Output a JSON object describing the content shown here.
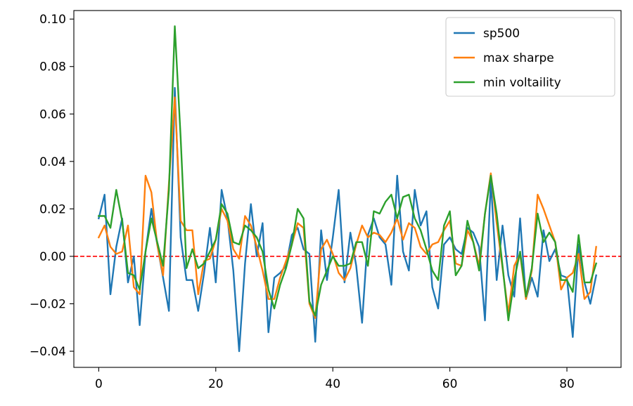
{
  "chart_data": {
    "type": "line",
    "title": "",
    "xlabel": "",
    "ylabel": "",
    "xlim": [
      -4.25,
      89.25
    ],
    "ylim": [
      -0.0468,
      0.1036
    ],
    "xticks": [
      0,
      20,
      40,
      60,
      80
    ],
    "xtick_labels": [
      "0",
      "20",
      "40",
      "60",
      "80"
    ],
    "yticks": [
      -0.04,
      -0.02,
      0.0,
      0.02,
      0.04,
      0.06,
      0.08,
      0.1
    ],
    "ytick_labels": [
      "−0.04",
      "−0.02",
      "0.00",
      "0.02",
      "0.04",
      "0.06",
      "0.08",
      "0.10"
    ],
    "grid": false,
    "legend_position": "top-right",
    "x": [
      0,
      1,
      2,
      3,
      4,
      5,
      6,
      7,
      8,
      9,
      10,
      11,
      12,
      13,
      14,
      15,
      16,
      17,
      18,
      19,
      20,
      21,
      22,
      23,
      24,
      25,
      26,
      27,
      28,
      29,
      30,
      31,
      32,
      33,
      34,
      35,
      36,
      37,
      38,
      39,
      40,
      41,
      42,
      43,
      44,
      45,
      46,
      47,
      48,
      49,
      50,
      51,
      52,
      53,
      54,
      55,
      56,
      57,
      58,
      59,
      60,
      61,
      62,
      63,
      64,
      65,
      66,
      67,
      68,
      69,
      70,
      71,
      72,
      73,
      74,
      75,
      76,
      77,
      78,
      79,
      80,
      81,
      82,
      83,
      84,
      85
    ],
    "series": [
      {
        "name": "sp500",
        "color": "#1f77b4",
        "values": [
          0.016,
          0.026,
          -0.016,
          0.004,
          0.016,
          -0.011,
          0.0,
          -0.029,
          0.002,
          0.02,
          0.005,
          -0.009,
          -0.023,
          0.071,
          0.008,
          -0.01,
          -0.01,
          -0.023,
          -0.007,
          0.012,
          -0.011,
          0.028,
          0.016,
          -0.006,
          -0.04,
          -0.003,
          0.022,
          0.0,
          0.014,
          -0.032,
          -0.009,
          -0.007,
          -0.004,
          0.009,
          0.012,
          0.003,
          0.001,
          -0.036,
          0.011,
          -0.01,
          0.008,
          0.028,
          -0.011,
          0.01,
          -0.004,
          -0.028,
          0.009,
          0.016,
          0.008,
          0.005,
          -0.012,
          0.034,
          0.002,
          -0.006,
          0.028,
          0.013,
          0.019,
          -0.013,
          -0.022,
          0.005,
          0.008,
          0.003,
          0.001,
          0.012,
          0.01,
          0.004,
          -0.027,
          0.032,
          -0.01,
          0.013,
          -0.008,
          -0.017,
          0.016,
          -0.018,
          -0.009,
          -0.017,
          0.011,
          -0.002,
          0.003,
          -0.008,
          -0.009,
          -0.034,
          0.005,
          -0.011,
          -0.02,
          -0.008
        ]
      },
      {
        "name": "max sharpe",
        "color": "#ff7f0e",
        "values": [
          0.008,
          0.013,
          0.004,
          0.001,
          0.002,
          0.013,
          -0.013,
          -0.016,
          0.034,
          0.027,
          0.005,
          -0.008,
          0.031,
          0.067,
          0.015,
          0.011,
          0.011,
          -0.016,
          -0.002,
          -0.001,
          0.007,
          0.02,
          0.015,
          0.003,
          -0.001,
          0.017,
          0.013,
          0.004,
          -0.006,
          -0.018,
          -0.018,
          -0.009,
          -0.002,
          0.005,
          0.014,
          0.012,
          -0.02,
          -0.026,
          0.003,
          0.007,
          0.001,
          -0.007,
          -0.01,
          -0.005,
          0.005,
          0.013,
          0.008,
          0.01,
          0.009,
          0.006,
          0.01,
          0.016,
          0.007,
          0.014,
          0.012,
          0.004,
          0.001,
          0.005,
          0.006,
          0.011,
          0.015,
          -0.003,
          -0.004,
          0.011,
          0.006,
          -0.004,
          0.018,
          0.035,
          0.014,
          -0.005,
          -0.024,
          -0.004,
          0.001,
          -0.018,
          -0.006,
          0.026,
          0.02,
          0.013,
          0.006,
          -0.014,
          -0.009,
          -0.007,
          0.001,
          -0.018,
          -0.015,
          0.004
        ]
      },
      {
        "name": "min voltaility",
        "color": "#2ca02c",
        "values": [
          0.017,
          0.017,
          0.012,
          0.028,
          0.015,
          -0.007,
          -0.008,
          -0.014,
          0.002,
          0.016,
          0.006,
          -0.004,
          0.028,
          0.097,
          0.05,
          -0.005,
          0.003,
          -0.005,
          -0.003,
          0.002,
          0.007,
          0.022,
          0.018,
          0.006,
          0.005,
          0.013,
          0.011,
          0.008,
          0.002,
          -0.014,
          -0.022,
          -0.012,
          -0.005,
          0.005,
          0.02,
          0.016,
          -0.019,
          -0.025,
          -0.012,
          -0.006,
          0.0,
          -0.004,
          -0.004,
          -0.003,
          0.006,
          0.006,
          -0.004,
          0.019,
          0.018,
          0.023,
          0.026,
          0.016,
          0.025,
          0.026,
          0.016,
          0.011,
          0.003,
          -0.006,
          -0.01,
          0.013,
          0.019,
          -0.008,
          -0.004,
          0.015,
          0.006,
          -0.006,
          0.018,
          0.034,
          0.018,
          -0.004,
          -0.027,
          -0.01,
          0.002,
          -0.017,
          -0.005,
          0.018,
          0.006,
          0.01,
          0.006,
          -0.01,
          -0.01,
          -0.015,
          0.009,
          -0.011,
          -0.011,
          -0.003
        ]
      }
    ],
    "reference_lines": [
      {
        "y": 0.0,
        "color": "#ff0000",
        "style": "dashed"
      }
    ]
  }
}
